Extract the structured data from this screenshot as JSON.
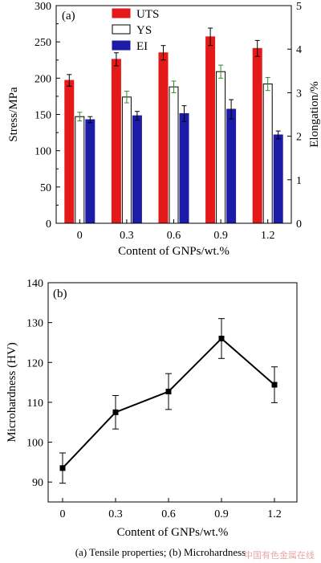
{
  "caption": "(a)  Tensile  properties; (b) Microhardness",
  "watermark": "中国有色金属在线",
  "chart_data": [
    {
      "type": "bar",
      "panel_label": "(a)",
      "categories": [
        "0",
        "0.3",
        "0.6",
        "0.9",
        "1.2"
      ],
      "xlabel": "Content of GNPs/wt.%",
      "ylabel": "Stress/MPa",
      "y2label": "Elongation/%",
      "ylim": [
        0,
        300
      ],
      "yticks": [
        "0",
        "50",
        "100",
        "150",
        "200",
        "250",
        "300"
      ],
      "y2lim": [
        0,
        5
      ],
      "y2ticks": [
        "0",
        "1",
        "2",
        "3",
        "4",
        "5"
      ],
      "legend": "top-left",
      "series": [
        {
          "name": "UTS",
          "axis": "left",
          "color": "#e41a1a",
          "values": [
            197,
            226,
            235,
            257,
            241
          ],
          "errors": [
            8,
            9,
            10,
            12,
            11
          ]
        },
        {
          "name": "YS",
          "axis": "left",
          "color": "#ffffff",
          "values": [
            147,
            174,
            188,
            209,
            192
          ],
          "errors": [
            6,
            8,
            8,
            9,
            9
          ]
        },
        {
          "name": "EI",
          "axis": "right",
          "color": "#1c1ca8",
          "values": [
            2.38,
            2.47,
            2.52,
            2.62,
            2.03
          ],
          "errors": [
            0.07,
            0.1,
            0.18,
            0.22,
            0.09
          ]
        }
      ]
    },
    {
      "type": "line",
      "panel_label": "(b)",
      "x": [
        "0",
        "0.3",
        "0.6",
        "0.9",
        "1.2"
      ],
      "xlabel": "Content of GNPs/wt.%",
      "ylabel": "Microhardness (HV)",
      "ylim": [
        85,
        140
      ],
      "yticks": [
        "90",
        "100",
        "110",
        "120",
        "130",
        "140"
      ],
      "series": [
        {
          "values": [
            93.5,
            107.5,
            112.7,
            126.0,
            114.4
          ],
          "errors": [
            3.8,
            4.2,
            4.5,
            5.0,
            4.5
          ]
        }
      ]
    }
  ]
}
